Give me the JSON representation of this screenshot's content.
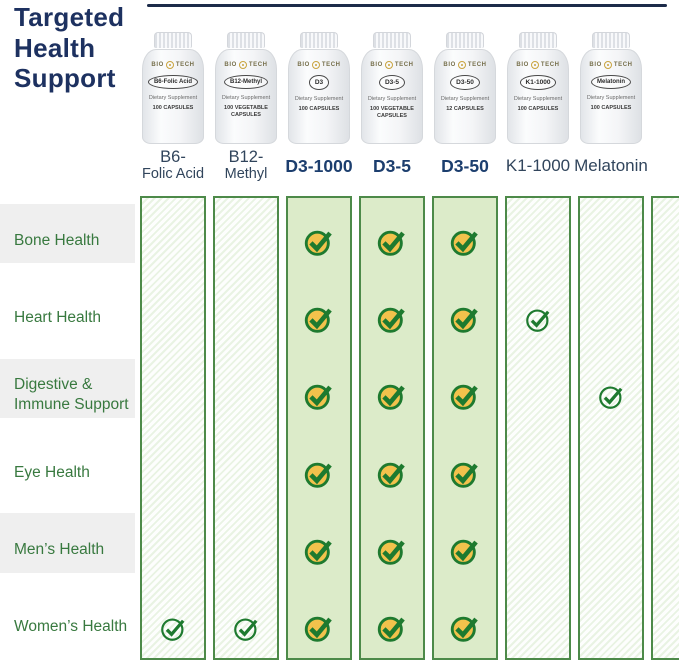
{
  "title": "Targeted Health Support",
  "brand_mark": {
    "left": "BIO",
    "right": "TECH"
  },
  "bottle_common": {
    "supplement_line": "Dietary Supplement"
  },
  "products": [
    {
      "header_lines": [
        "B6-",
        "Folic Acid"
      ],
      "header_style": "two-line",
      "bottle_label": "B6-Folic Acid",
      "capsule_count": "100 CAPSULES",
      "column_fill": "striped"
    },
    {
      "header_lines": [
        "B12-",
        "Methyl"
      ],
      "header_style": "two-line",
      "bottle_label": "B12-Methyl",
      "capsule_count": "100 VEGETABLE CAPSULES",
      "column_fill": "striped"
    },
    {
      "header_lines": [
        "D3-1000"
      ],
      "header_style": "bold",
      "bottle_label": "D3",
      "capsule_count": "100 CAPSULES",
      "column_fill": "solid"
    },
    {
      "header_lines": [
        "D3-5"
      ],
      "header_style": "bold",
      "bottle_label": "D3-5",
      "capsule_count": "100 VEGETABLE CAPSULES",
      "column_fill": "solid"
    },
    {
      "header_lines": [
        "D3-50"
      ],
      "header_style": "bold",
      "bottle_label": "D3-50",
      "capsule_count": "12 CAPSULES",
      "column_fill": "solid"
    },
    {
      "header_lines": [
        "K1-1000"
      ],
      "header_style": "regular",
      "bottle_label": "K1-1000",
      "capsule_count": "100 CAPSULES",
      "column_fill": "striped"
    },
    {
      "header_lines": [
        "Melatonin"
      ],
      "header_style": "regular",
      "bottle_label": "Melatonin",
      "capsule_count": "100 CAPSULES",
      "column_fill": "striped"
    }
  ],
  "rows": [
    {
      "label_lines": [
        "Bone Health"
      ],
      "checks": [
        "none",
        "none",
        "filled",
        "filled",
        "filled",
        "none",
        "none"
      ]
    },
    {
      "label_lines": [
        "Heart Health"
      ],
      "checks": [
        "none",
        "none",
        "filled",
        "filled",
        "filled",
        "outline",
        "none"
      ]
    },
    {
      "label_lines": [
        "Digestive &",
        "Immune Support"
      ],
      "checks": [
        "none",
        "none",
        "filled",
        "filled",
        "filled",
        "none",
        "outline"
      ]
    },
    {
      "label_lines": [
        "Eye Health"
      ],
      "checks": [
        "none",
        "none",
        "filled",
        "filled",
        "filled",
        "none",
        "none"
      ]
    },
    {
      "label_lines": [
        "Men’s Health"
      ],
      "checks": [
        "none",
        "none",
        "filled",
        "filled",
        "filled",
        "none",
        "none"
      ]
    },
    {
      "label_lines": [
        "Women’s Health"
      ],
      "checks": [
        "outline",
        "outline",
        "filled",
        "filled",
        "filled",
        "none",
        "none"
      ]
    }
  ],
  "colors": {
    "title_navy": "#1d3160",
    "rule_navy": "#1c2b49",
    "header_bold_navy": "#1c3e6e",
    "header_regular": "#31455c",
    "row_label_green": "#38793f",
    "check_green": "#1e7a2f",
    "check_gold": "#f2c24c",
    "column_green_fill": "#dcebc9",
    "column_border_green": "#4d8a49",
    "stripe_green": "#e9f3e3",
    "row_band_gray": "#efefef"
  },
  "chart_data": {
    "type": "table",
    "title": "Targeted Health Support",
    "columns": [
      "B6-Folic Acid",
      "B12-Methyl",
      "D3-1000",
      "D3-5",
      "D3-50",
      "K1-1000",
      "Melatonin"
    ],
    "rows": [
      "Bone Health",
      "Heart Health",
      "Digestive & Immune Support",
      "Eye Health",
      "Men’s Health",
      "Women’s Health"
    ],
    "matrix": [
      [
        0,
        0,
        1,
        1,
        1,
        0,
        0
      ],
      [
        0,
        0,
        1,
        1,
        1,
        1,
        0
      ],
      [
        0,
        0,
        1,
        1,
        1,
        0,
        1
      ],
      [
        0,
        0,
        1,
        1,
        1,
        0,
        0
      ],
      [
        0,
        0,
        1,
        1,
        1,
        0,
        0
      ],
      [
        1,
        1,
        1,
        1,
        1,
        0,
        0
      ]
    ],
    "legend_note": "1 = supports category (gold check in green columns, outline check in striped columns)"
  }
}
